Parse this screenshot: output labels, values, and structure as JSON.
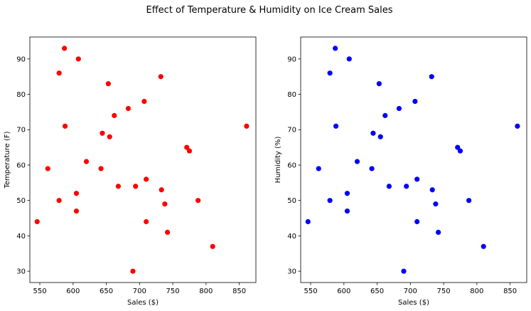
{
  "figure": {
    "title": "Effect of Temperature & Humidity on Ice Cream Sales"
  },
  "chart_data": [
    {
      "type": "scatter",
      "title": "",
      "xlabel": "Sales ($)",
      "ylabel": "Temperature (F)",
      "color": "#ff0000",
      "xlim": [
        535,
        875
      ],
      "ylim": [
        26.8,
        96.2
      ],
      "xticks": [
        550,
        600,
        650,
        700,
        750,
        800,
        850
      ],
      "yticks": [
        30,
        40,
        50,
        60,
        70,
        80,
        90
      ],
      "grid": false,
      "points": [
        {
          "x": 587,
          "y": 93
        },
        {
          "x": 608,
          "y": 90
        },
        {
          "x": 579,
          "y": 86
        },
        {
          "x": 732,
          "y": 85
        },
        {
          "x": 653,
          "y": 83
        },
        {
          "x": 707,
          "y": 78
        },
        {
          "x": 683,
          "y": 76
        },
        {
          "x": 662,
          "y": 74
        },
        {
          "x": 588,
          "y": 71
        },
        {
          "x": 861,
          "y": 71
        },
        {
          "x": 644,
          "y": 69
        },
        {
          "x": 655,
          "y": 68
        },
        {
          "x": 771,
          "y": 65
        },
        {
          "x": 775,
          "y": 64
        },
        {
          "x": 620,
          "y": 61
        },
        {
          "x": 562,
          "y": 59
        },
        {
          "x": 642,
          "y": 59
        },
        {
          "x": 710,
          "y": 56
        },
        {
          "x": 668,
          "y": 54
        },
        {
          "x": 694,
          "y": 54
        },
        {
          "x": 733,
          "y": 53
        },
        {
          "x": 605,
          "y": 52
        },
        {
          "x": 579,
          "y": 50
        },
        {
          "x": 788,
          "y": 50
        },
        {
          "x": 738,
          "y": 49
        },
        {
          "x": 605,
          "y": 47
        },
        {
          "x": 546,
          "y": 44
        },
        {
          "x": 710,
          "y": 44
        },
        {
          "x": 742,
          "y": 41
        },
        {
          "x": 810,
          "y": 37
        },
        {
          "x": 690,
          "y": 30
        }
      ]
    },
    {
      "type": "scatter",
      "title": "",
      "xlabel": "Sales ($)",
      "ylabel": "Humidity (%)",
      "color": "#0000ff",
      "xlim": [
        535,
        875
      ],
      "ylim": [
        26.8,
        96.2
      ],
      "xticks": [
        550,
        600,
        650,
        700,
        750,
        800,
        850
      ],
      "yticks": [
        30,
        40,
        50,
        60,
        70,
        80,
        90
      ],
      "grid": false,
      "points": [
        {
          "x": 587,
          "y": 93
        },
        {
          "x": 608,
          "y": 90
        },
        {
          "x": 579,
          "y": 86
        },
        {
          "x": 732,
          "y": 85
        },
        {
          "x": 653,
          "y": 83
        },
        {
          "x": 707,
          "y": 78
        },
        {
          "x": 683,
          "y": 76
        },
        {
          "x": 662,
          "y": 74
        },
        {
          "x": 588,
          "y": 71
        },
        {
          "x": 861,
          "y": 71
        },
        {
          "x": 644,
          "y": 69
        },
        {
          "x": 655,
          "y": 68
        },
        {
          "x": 771,
          "y": 65
        },
        {
          "x": 775,
          "y": 64
        },
        {
          "x": 620,
          "y": 61
        },
        {
          "x": 562,
          "y": 59
        },
        {
          "x": 642,
          "y": 59
        },
        {
          "x": 710,
          "y": 56
        },
        {
          "x": 668,
          "y": 54
        },
        {
          "x": 694,
          "y": 54
        },
        {
          "x": 733,
          "y": 53
        },
        {
          "x": 605,
          "y": 52
        },
        {
          "x": 579,
          "y": 50
        },
        {
          "x": 788,
          "y": 50
        },
        {
          "x": 738,
          "y": 49
        },
        {
          "x": 605,
          "y": 47
        },
        {
          "x": 546,
          "y": 44
        },
        {
          "x": 710,
          "y": 44
        },
        {
          "x": 742,
          "y": 41
        },
        {
          "x": 810,
          "y": 37
        },
        {
          "x": 690,
          "y": 30
        }
      ]
    }
  ]
}
